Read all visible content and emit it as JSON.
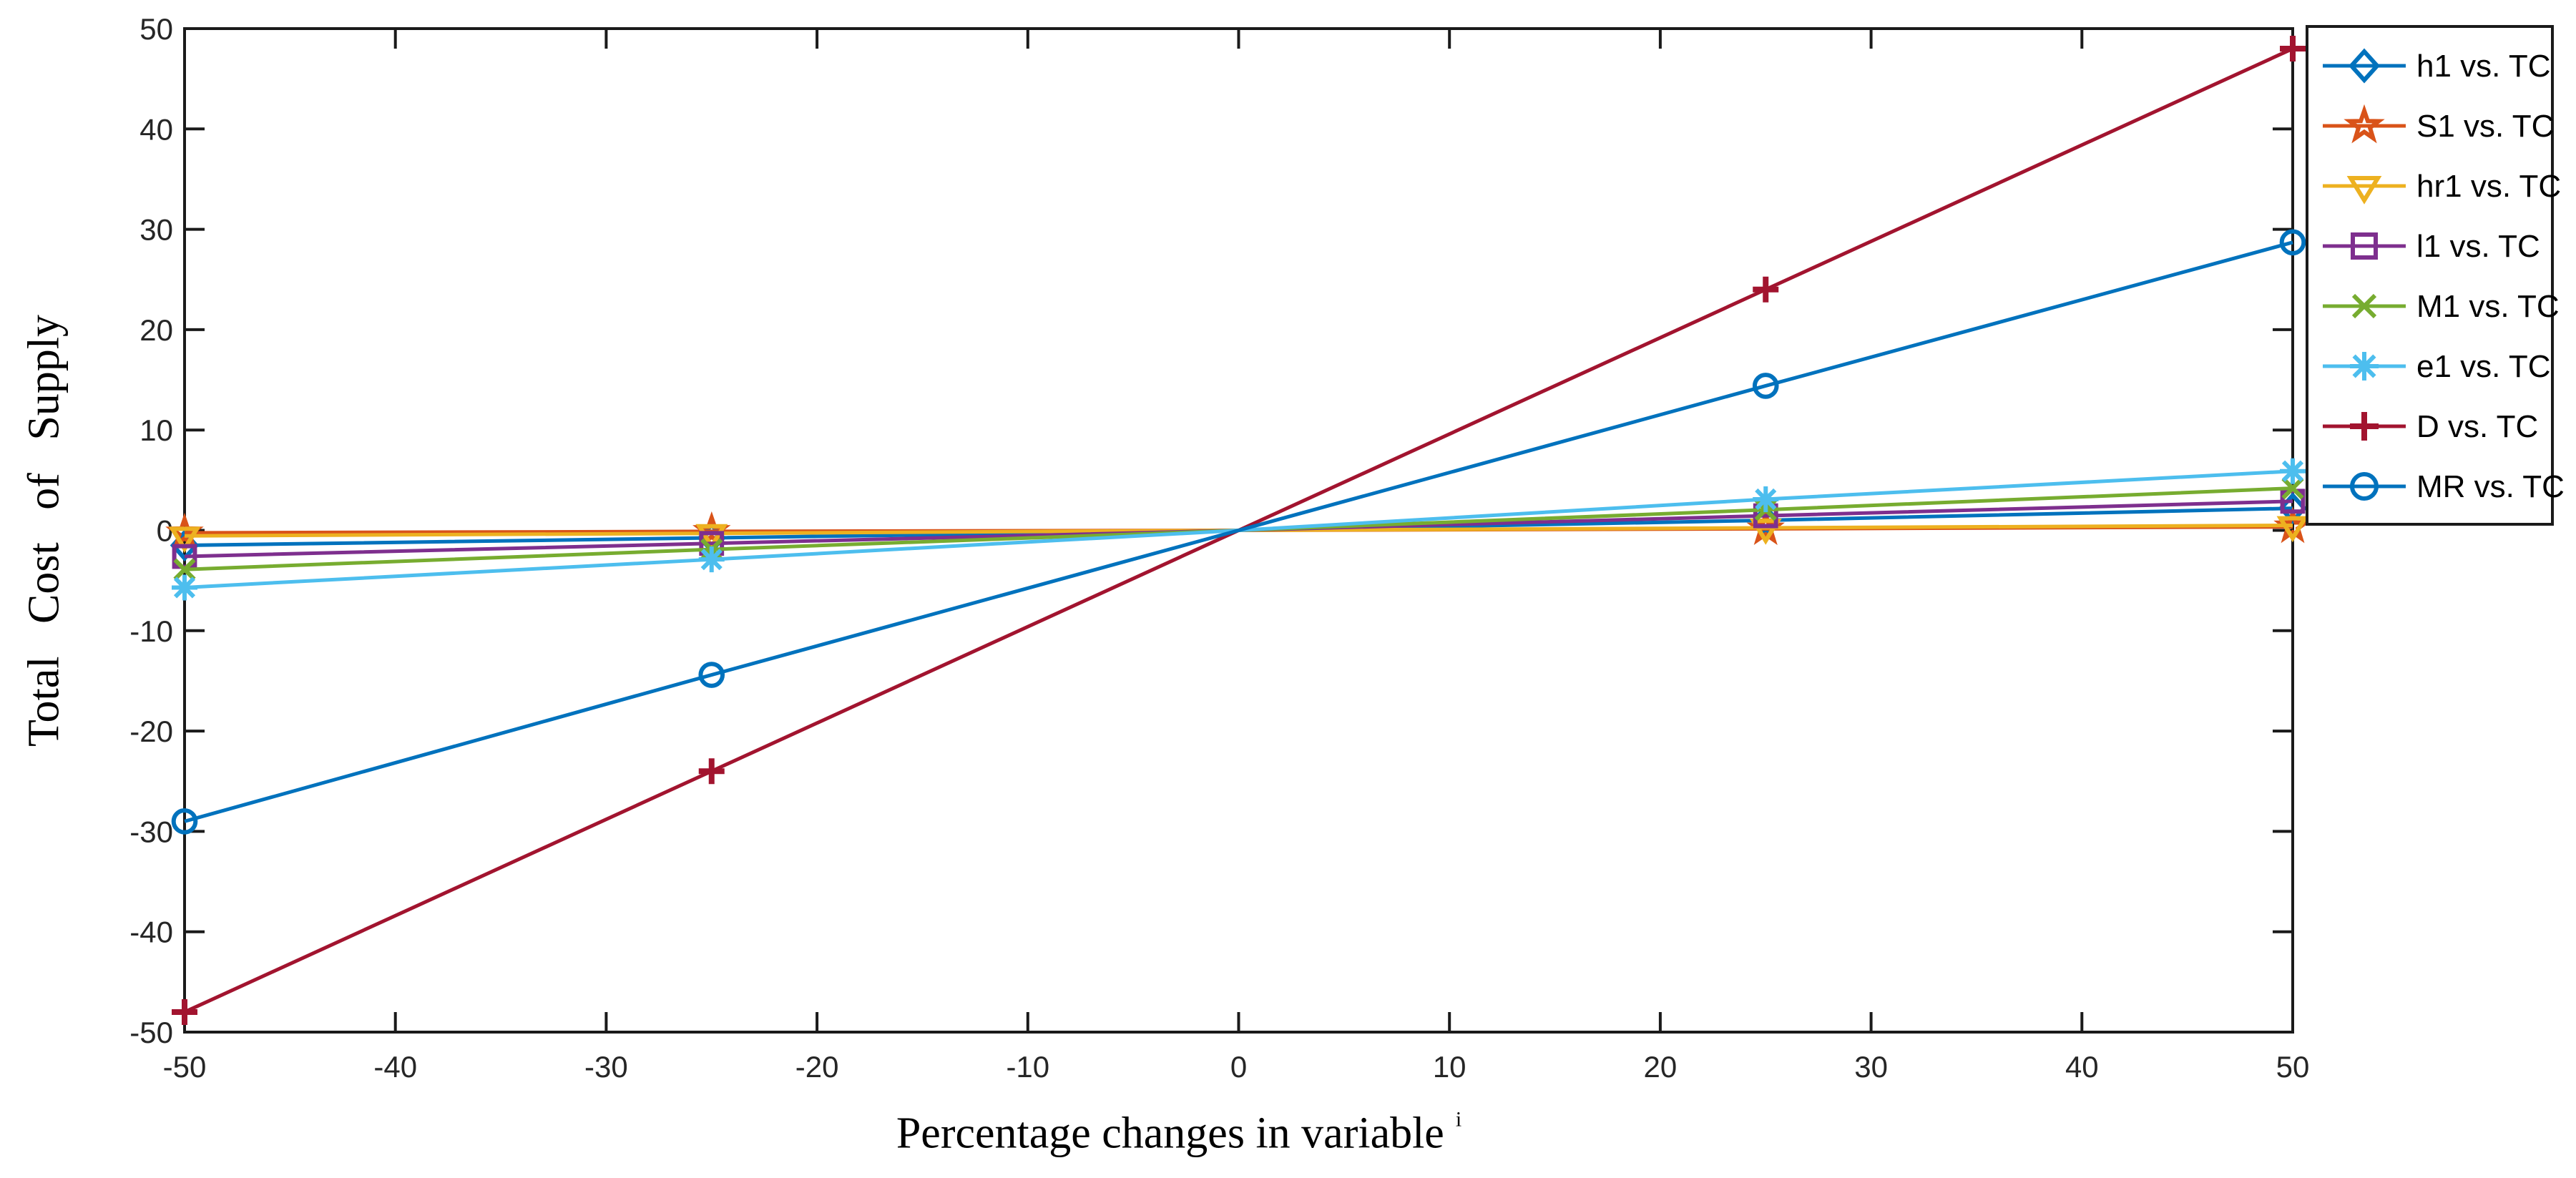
{
  "chart_data": {
    "type": "line",
    "title": "",
    "xlabel": "Percentage changes in variable",
    "xlabel_suffix": "i",
    "ylabel": "Total Cost of Supply",
    "xlim": [
      -50,
      50
    ],
    "ylim": [
      -50,
      50
    ],
    "xticks": [
      -50,
      -40,
      -30,
      -20,
      -10,
      0,
      10,
      20,
      30,
      40,
      50
    ],
    "yticks": [
      -50,
      -40,
      -30,
      -20,
      -10,
      0,
      10,
      20,
      30,
      40,
      50
    ],
    "grid": false,
    "legend_position": "outside-top-right",
    "x": [
      -50,
      -25,
      0,
      25,
      50
    ],
    "series": [
      {
        "name": "h1 vs. TC",
        "color": "#0072BD",
        "marker": "diamond",
        "values": [
          -1.5,
          -0.75,
          0,
          1.0,
          2.2
        ]
      },
      {
        "name": "S1 vs. TC",
        "color": "#D95319",
        "marker": "pentagram",
        "values": [
          -0.25,
          -0.1,
          0,
          0.15,
          0.35
        ]
      },
      {
        "name": "hr1 vs. TC",
        "color": "#EDB120",
        "marker": "triangle-down",
        "values": [
          -0.55,
          -0.3,
          0,
          0.25,
          0.5
        ]
      },
      {
        "name": "l1 vs. TC",
        "color": "#7E2F8E",
        "marker": "square",
        "values": [
          -2.6,
          -1.3,
          0,
          1.45,
          2.9
        ]
      },
      {
        "name": "M1 vs. TC",
        "color": "#77AC30",
        "marker": "x",
        "values": [
          -3.9,
          -1.9,
          0,
          2.05,
          4.2
        ]
      },
      {
        "name": "e1 vs. TC",
        "color": "#4DBEEE",
        "marker": "asterisk",
        "values": [
          -5.7,
          -2.9,
          0,
          3.1,
          5.9
        ]
      },
      {
        "name": "D vs. TC",
        "color": "#A2142F",
        "marker": "plus",
        "values": [
          -48,
          -24,
          0,
          24,
          48
        ]
      },
      {
        "name": "MR vs. TC",
        "color": "#0072BD",
        "marker": "circle",
        "values": [
          -29,
          -14.4,
          0,
          14.4,
          28.7
        ]
      }
    ],
    "axis_color": "#1a1a1a",
    "tick_label_color": "#262626",
    "legend_text_color": "#000000"
  }
}
